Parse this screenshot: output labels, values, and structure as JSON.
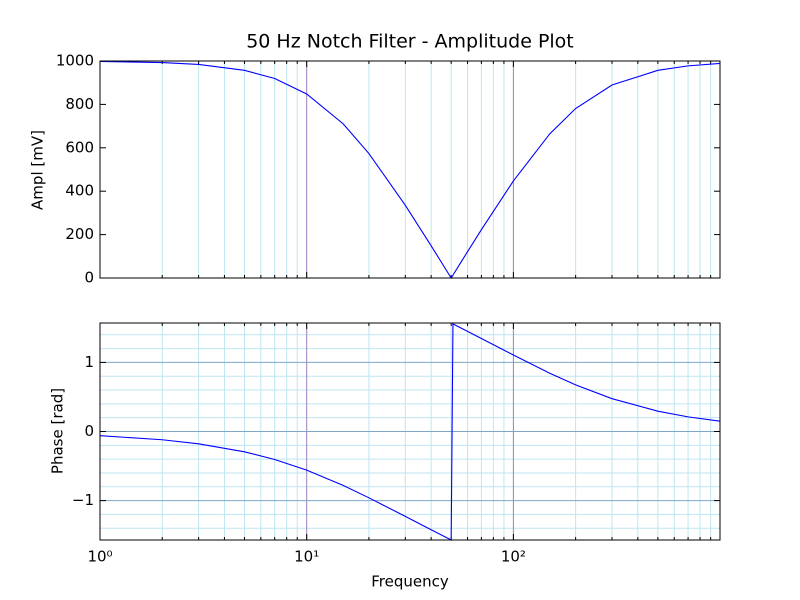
{
  "chart_data": [
    {
      "type": "line",
      "title": "50 Hz Notch Filter - Amplitude Plot",
      "y_label": "Ampl [mV]",
      "log_x": true,
      "x": [
        1,
        2,
        3,
        5,
        7,
        10,
        15,
        20,
        30,
        40,
        45,
        50,
        51,
        55,
        60,
        70,
        100,
        150,
        200,
        300,
        500,
        700,
        999
      ],
      "series": [
        {
          "color": "#0000ff",
          "values": [
            998.2,
            992.9,
            984.1,
            957.0,
            919.2,
            848.0,
            711.0,
            573.5,
            335.0,
            148.3,
            70.2,
            0,
            13.2,
            63.5,
            121.3,
            222.8,
            447.2,
            664.4,
            780.9,
            889.3,
            957.0,
            977.6,
            988.9
          ]
        }
      ],
      "xlim": [
        1,
        999
      ],
      "ylim": [
        0,
        1000
      ],
      "yticks": [
        0,
        200,
        400,
        600,
        800,
        1000
      ]
    },
    {
      "type": "line",
      "y_label": "Phase [rad]",
      "x_label": "Frequency",
      "log_x": true,
      "x": [
        1,
        2,
        3,
        5,
        7,
        10,
        15,
        20,
        30,
        40,
        45,
        50,
        51,
        55,
        60,
        70,
        100,
        150,
        200,
        300,
        500,
        700,
        999
      ],
      "series": [
        {
          "color": "#0000ff",
          "values": [
            -0.06,
            -0.1196,
            -0.1788,
            -0.2942,
            -0.405,
            -0.5586,
            -0.78,
            -0.96,
            -1.229,
            -1.422,
            -1.5,
            -1.571,
            1.558,
            1.507,
            1.449,
            1.346,
            1.107,
            0.844,
            0.675,
            0.475,
            0.294,
            0.212,
            0.1494
          ]
        }
      ],
      "xlim": [
        1,
        999
      ],
      "ylim": [
        -1.5708,
        1.5708
      ],
      "xticks": [
        {
          "value": 1,
          "label": "10⁰"
        },
        {
          "value": 10,
          "label": "10¹"
        },
        {
          "value": 100,
          "label": "10²"
        }
      ],
      "xminorticks": [
        2,
        3,
        4,
        5,
        6,
        7,
        8,
        9,
        20,
        30,
        40,
        50,
        60,
        70,
        80,
        90,
        200,
        300,
        400,
        500,
        600,
        700,
        800,
        900
      ],
      "yticks": [
        {
          "value": -1,
          "label": "−1"
        },
        0,
        1
      ],
      "yminorticks": [
        -1.4,
        -1.2,
        -0.8,
        -0.6,
        -0.4,
        -0.2,
        0.2,
        0.4,
        0.6,
        0.8,
        1.2,
        1.4
      ]
    }
  ]
}
